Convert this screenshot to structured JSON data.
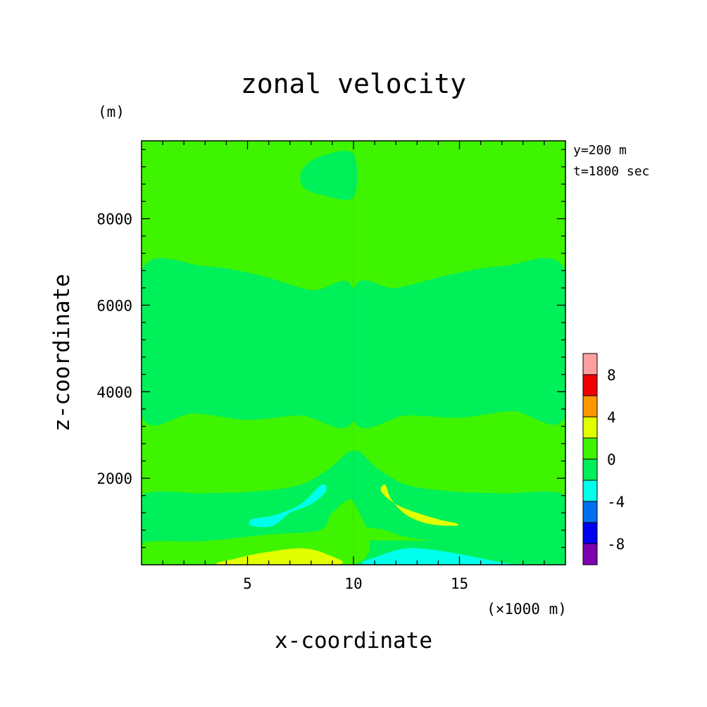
{
  "chart_data": {
    "type": "contour",
    "title": "zonal velocity",
    "xlabel": "x-coordinate",
    "ylabel": "z-coordinate",
    "x_unit": "(×1000 m)",
    "y_unit": "(m)",
    "annotations": [
      "y=200 m",
      "t=1800 sec"
    ],
    "xlim": [
      0,
      20
    ],
    "ylim": [
      0,
      9800
    ],
    "x_ticks": [
      5,
      10,
      15
    ],
    "x_tick_labels": [
      "5",
      "10",
      "15"
    ],
    "y_ticks": [
      2000,
      4000,
      6000,
      8000
    ],
    "y_tick_labels": [
      "2000",
      "4000",
      "6000",
      "8000"
    ],
    "x_minor_step": 1,
    "y_minor_step": 400,
    "background_color": "#3ff400",
    "colorbar": {
      "levels": [
        -10,
        -8,
        -6,
        -4,
        -2,
        0,
        2,
        4,
        6,
        8,
        10
      ],
      "labels": [
        "8",
        "4",
        "0",
        "-4",
        "-8"
      ],
      "label_values": [
        8,
        4,
        0,
        -4,
        -8
      ],
      "colors": [
        "#7e00b1",
        "#0000f0",
        "#0070f0",
        "#00ffea",
        "#00f05a",
        "#3ff400",
        "#e2ff00",
        "#ff9800",
        "#f00000",
        "#ffa0a0"
      ]
    },
    "regions": [
      {
        "name": "eastern-upper-band",
        "value_range": [
          -2,
          0
        ],
        "color": "#00f05a",
        "outline": [
          [
            10,
            6350
          ],
          [
            12,
            6400
          ],
          [
            14.5,
            6700
          ],
          [
            17,
            6900
          ],
          [
            20,
            6800
          ],
          [
            20,
            3450
          ],
          [
            17.5,
            3550
          ],
          [
            15,
            3400
          ],
          [
            12.5,
            3450
          ],
          [
            10,
            3350
          ]
        ]
      },
      {
        "name": "western-middle-band",
        "value_range": [
          -2,
          0
        ],
        "color": "#00f05a",
        "outline": [
          [
            0,
            6800
          ],
          [
            3,
            6900
          ],
          [
            5.5,
            6700
          ],
          [
            8,
            6350
          ],
          [
            10,
            6350
          ],
          [
            10,
            3350
          ],
          [
            7.5,
            3450
          ],
          [
            5,
            3350
          ],
          [
            2.5,
            3500
          ],
          [
            0,
            3450
          ]
        ]
      },
      {
        "name": "top-ellipse-west",
        "value_range": [
          -2,
          0
        ],
        "color": "#00f05a",
        "outline": [
          [
            10,
            9500
          ],
          [
            8.5,
            9450
          ],
          [
            7.6,
            9150
          ],
          [
            7.6,
            8750
          ],
          [
            8.5,
            8550
          ],
          [
            10,
            8500
          ]
        ]
      },
      {
        "name": "eastern-lower-band",
        "value_range": [
          -2,
          0
        ],
        "color": "#00f05a",
        "outline": [
          [
            10,
            2600
          ],
          [
            11.2,
            2200
          ],
          [
            12.5,
            1850
          ],
          [
            14.5,
            1700
          ],
          [
            17,
            1650
          ],
          [
            20,
            1600
          ],
          [
            20,
            500
          ],
          [
            16,
            500
          ],
          [
            13,
            600
          ],
          [
            11.5,
            800
          ],
          [
            10,
            1100
          ]
        ]
      },
      {
        "name": "western-lower-band",
        "value_range": [
          -2,
          0
        ],
        "color": "#00f05a",
        "outline": [
          [
            0,
            1600
          ],
          [
            3,
            1650
          ],
          [
            5.5,
            1700
          ],
          [
            7.5,
            1850
          ],
          [
            8.8,
            2200
          ],
          [
            10,
            2600
          ],
          [
            10,
            1400
          ],
          [
            9,
            1100
          ],
          [
            8.4,
            700
          ],
          [
            5.5,
            600
          ],
          [
            3,
            500
          ],
          [
            0,
            500
          ]
        ]
      },
      {
        "name": "bottom-strip",
        "value_range": [
          -2,
          0
        ],
        "color": "#00f05a",
        "outline": [
          [
            0,
            500
          ],
          [
            20,
            500
          ],
          [
            20,
            0
          ],
          [
            0,
            0
          ]
        ]
      },
      {
        "name": "western-positive-wing",
        "value_range": [
          0,
          2
        ],
        "color": "#3ff400",
        "outline": [
          [
            0,
            500
          ],
          [
            3,
            550
          ],
          [
            6,
            700
          ],
          [
            8.4,
            800
          ],
          [
            9,
            1200
          ],
          [
            10,
            1450
          ],
          [
            10,
            0
          ],
          [
            0,
            0
          ]
        ]
      },
      {
        "name": "western-negative-jet",
        "value_range": [
          -4,
          -2
        ],
        "color": "#00ffea",
        "outline": [
          [
            8.5,
            1850
          ],
          [
            8.7,
            1700
          ],
          [
            8.0,
            1400
          ],
          [
            7.0,
            1200
          ],
          [
            6.2,
            900
          ],
          [
            5.2,
            900
          ],
          [
            5.2,
            1050
          ],
          [
            6.3,
            1150
          ],
          [
            7.5,
            1400
          ]
        ]
      },
      {
        "name": "eastern-positive-jet",
        "value_range": [
          2,
          4
        ],
        "color": "#e2ff00",
        "outline": [
          [
            11.5,
            1850
          ],
          [
            11.3,
            1700
          ],
          [
            12.0,
            1400
          ],
          [
            13.0,
            1200
          ],
          [
            14.0,
            1050
          ],
          [
            14.9,
            950
          ],
          [
            14.7,
            900
          ],
          [
            13.5,
            950
          ],
          [
            12.5,
            1150
          ],
          [
            11.8,
            1500
          ]
        ]
      },
      {
        "name": "western-surface-positive",
        "value_range": [
          2,
          4
        ],
        "color": "#e2ff00",
        "outline": [
          [
            3.8,
            0
          ],
          [
            4.5,
            150
          ],
          [
            6,
            300
          ],
          [
            7.6,
            380
          ],
          [
            8.7,
            250
          ],
          [
            9.2,
            0
          ]
        ]
      },
      {
        "name": "eastern-surface-negative",
        "value_range": [
          -4,
          -2
        ],
        "color": "#00ffea",
        "outline": [
          [
            10.8,
            0
          ],
          [
            11.2,
            200
          ],
          [
            12.5,
            380
          ],
          [
            14,
            330
          ],
          [
            15.5,
            200
          ],
          [
            17,
            50
          ],
          [
            17.3,
            0
          ]
        ]
      }
    ]
  }
}
